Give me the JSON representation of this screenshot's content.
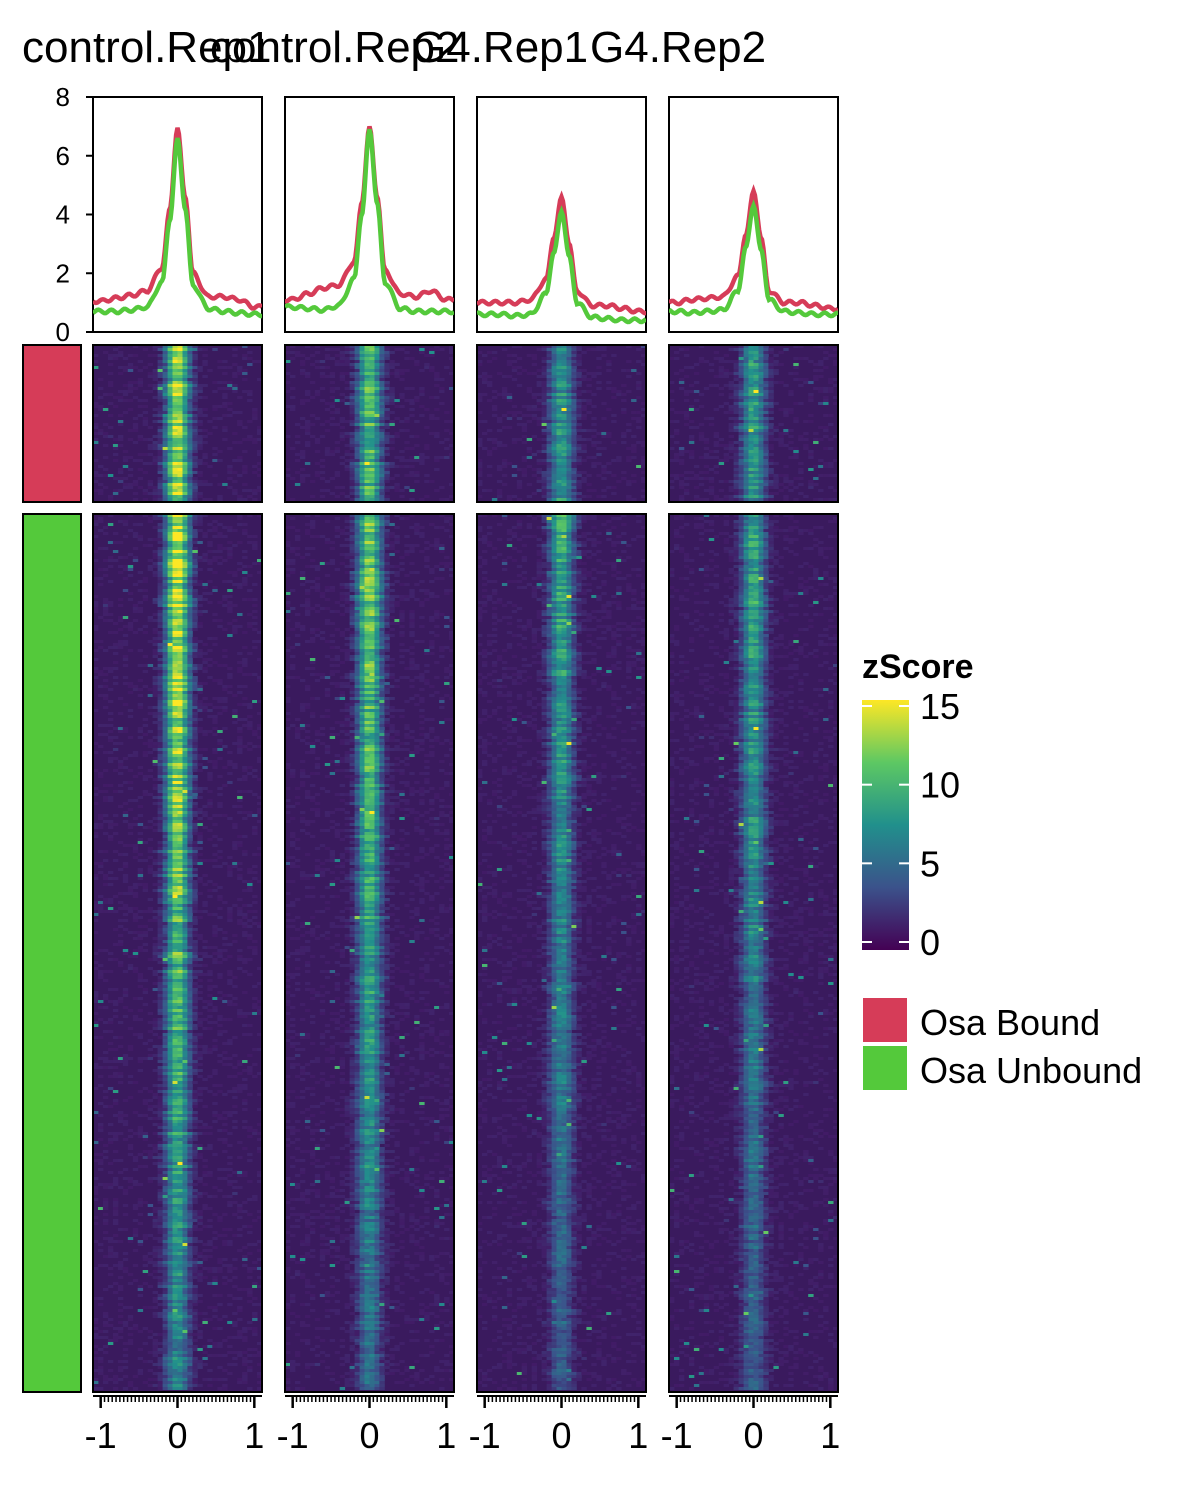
{
  "figure": {
    "panel_titles": [
      "control.Rep1",
      "control.Rep2",
      "G4.Rep1",
      "G4.Rep2"
    ]
  },
  "colors": {
    "bound": "#D63C58",
    "unbound": "#54C93B",
    "panel_border": "#000000",
    "viridis": [
      "#440154",
      "#3B528B",
      "#21908C",
      "#5DC863",
      "#FDE725"
    ],
    "heat_background": "#3A1A5E"
  },
  "chart_data": [
    {
      "type": "line",
      "panel": "control.Rep1",
      "x": [
        -1.0,
        -0.8,
        -0.6,
        -0.4,
        -0.2,
        -0.1,
        0.0,
        0.1,
        0.2,
        0.4,
        0.6,
        0.8,
        1.0
      ],
      "xlim": [
        -1.1,
        1.1
      ],
      "ylim": [
        0,
        8
      ],
      "yticks": [
        0,
        2,
        4,
        6,
        8
      ],
      "xticks": [
        -1,
        0,
        1
      ],
      "series": [
        {
          "name": "Osa Bound",
          "values": [
            1.05,
            1.15,
            1.25,
            1.4,
            2.2,
            4.2,
            6.95,
            4.6,
            2.0,
            1.2,
            1.2,
            1.1,
            0.85
          ]
        },
        {
          "name": "Osa Unbound",
          "values": [
            0.7,
            0.7,
            0.75,
            0.85,
            1.7,
            3.8,
            6.6,
            4.2,
            1.6,
            0.8,
            0.7,
            0.65,
            0.6
          ]
        }
      ]
    },
    {
      "type": "line",
      "panel": "control.Rep2",
      "x": [
        -1.0,
        -0.8,
        -0.6,
        -0.4,
        -0.2,
        -0.1,
        0.0,
        0.1,
        0.2,
        0.4,
        0.6,
        0.8,
        1.0
      ],
      "xlim": [
        -1.1,
        1.1
      ],
      "ylim": [
        0,
        8
      ],
      "xticks": [
        -1,
        0,
        1
      ],
      "series": [
        {
          "name": "Osa Bound",
          "values": [
            1.1,
            1.3,
            1.5,
            1.6,
            2.4,
            4.4,
            7.0,
            4.6,
            2.1,
            1.3,
            1.2,
            1.4,
            1.1
          ]
        },
        {
          "name": "Osa Unbound",
          "values": [
            0.85,
            0.8,
            0.75,
            0.9,
            1.8,
            4.0,
            6.9,
            4.4,
            1.7,
            0.8,
            0.7,
            0.7,
            0.7
          ]
        }
      ]
    },
    {
      "type": "line",
      "panel": "G4.Rep1",
      "x": [
        -1.0,
        -0.8,
        -0.6,
        -0.4,
        -0.2,
        -0.1,
        0.0,
        0.1,
        0.2,
        0.4,
        0.6,
        0.8,
        1.0
      ],
      "xlim": [
        -1.1,
        1.1
      ],
      "ylim": [
        0,
        8
      ],
      "xticks": [
        -1,
        0,
        1
      ],
      "series": [
        {
          "name": "Osa Bound",
          "values": [
            1.0,
            1.0,
            1.0,
            1.1,
            1.8,
            3.2,
            4.6,
            3.0,
            1.4,
            0.9,
            0.9,
            0.8,
            0.7
          ]
        },
        {
          "name": "Osa Unbound",
          "values": [
            0.6,
            0.6,
            0.55,
            0.6,
            1.3,
            2.7,
            4.1,
            2.6,
            1.0,
            0.5,
            0.45,
            0.4,
            0.4
          ]
        }
      ]
    },
    {
      "type": "line",
      "panel": "G4.Rep2",
      "x": [
        -1.0,
        -0.8,
        -0.6,
        -0.4,
        -0.2,
        -0.1,
        0.0,
        0.1,
        0.2,
        0.4,
        0.6,
        0.8,
        1.0
      ],
      "xlim": [
        -1.1,
        1.1
      ],
      "ylim": [
        0,
        8
      ],
      "xticks": [
        -1,
        0,
        1
      ],
      "series": [
        {
          "name": "Osa Bound",
          "values": [
            1.0,
            1.1,
            1.15,
            1.2,
            1.9,
            3.3,
            4.8,
            3.2,
            1.4,
            1.0,
            1.0,
            0.9,
            0.8
          ]
        },
        {
          "name": "Osa Unbound",
          "values": [
            0.7,
            0.65,
            0.7,
            0.75,
            1.4,
            2.9,
            4.3,
            2.8,
            1.1,
            0.7,
            0.65,
            0.6,
            0.6
          ]
        }
      ]
    },
    {
      "type": "heatmap",
      "panels": [
        "control.Rep1",
        "control.Rep2",
        "G4.Rep1",
        "G4.Rep2"
      ],
      "groups": [
        "Osa Bound",
        "Osa Unbound"
      ],
      "xlim": [
        -1.1,
        1.1
      ],
      "xticks": [
        -1,
        0,
        1
      ],
      "panel_peak_zscore": [
        15,
        12,
        9,
        9
      ],
      "colorbar": {
        "title": "zScore",
        "ticks": [
          0,
          5,
          10,
          15
        ],
        "range": [
          0,
          15
        ]
      },
      "legend": {
        "entries": [
          "Osa Bound",
          "Osa Unbound"
        ],
        "placement": "right"
      }
    }
  ]
}
